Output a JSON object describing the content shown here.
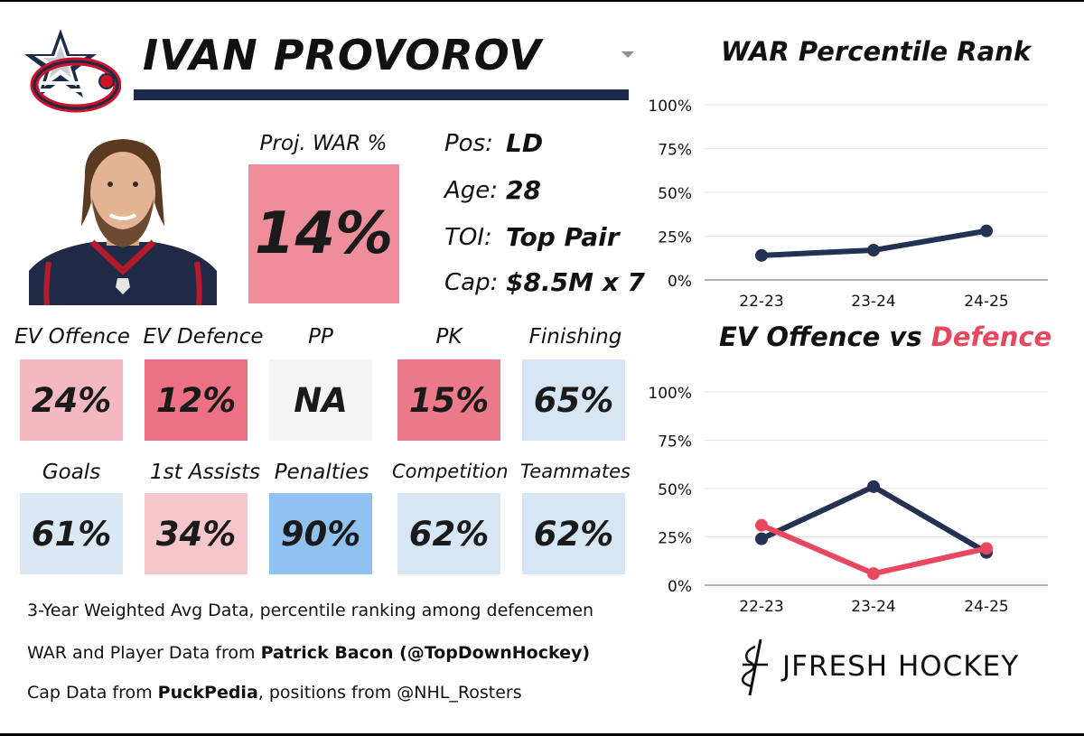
{
  "player": {
    "name": "IVAN PROVOROV",
    "proj_war_label": "Proj. WAR %",
    "proj_war_value": "14%",
    "info": [
      {
        "key": "Pos:",
        "value": "LD"
      },
      {
        "key": "Age:",
        "value": "28"
      },
      {
        "key": "TOI:",
        "value": "Top Pair"
      },
      {
        "key": "Cap:",
        "value": "$8.5M x 7"
      }
    ]
  },
  "colors": {
    "navy": "#233152",
    "red": "#e8485f",
    "pink_strong": "#ec7182",
    "pink_mid": "#ef8e9b",
    "pink_light": "#f3b8c1",
    "neutral": "#f4f4f4",
    "blue_light": "#d7e6f5",
    "blue_strong": "#8fc2f0"
  },
  "tiles_row1": [
    {
      "label": "EV Offence",
      "value": "24%",
      "color": "#f3b8c1"
    },
    {
      "label": "EV Defence",
      "value": "12%",
      "color": "#ec7182"
    },
    {
      "label": "PP",
      "value": "NA",
      "color": "#f4f4f4"
    },
    {
      "label": "PK",
      "value": "15%",
      "color": "#ec7a8a"
    },
    {
      "label": "Finishing",
      "value": "65%",
      "color": "#d7e6f5"
    }
  ],
  "tiles_row2": [
    {
      "label": "Goals",
      "value": "61%",
      "color": "#dbe8f6"
    },
    {
      "label": "1st Assists",
      "value": "34%",
      "color": "#f6c6cd"
    },
    {
      "label": "Penalties",
      "value": "90%",
      "color": "#8fc2f0"
    },
    {
      "label": "Competition",
      "value": "62%",
      "color": "#d7e6f5"
    },
    {
      "label": "Teammates",
      "value": "62%",
      "color": "#d7e6f5"
    }
  ],
  "footer": {
    "line1": "3-Year Weighted Avg Data, percentile ranking among defencemen",
    "line2_prefix": "WAR and Player Data from ",
    "line2_bold": "Patrick Bacon (@TopDownHockey)",
    "line3_prefix": "Cap Data from ",
    "line3_bold": "PuckPedia",
    "line3_suffix": ", positions from @NHL_Rosters"
  },
  "brand": {
    "name": "JFRESH HOCKEY"
  },
  "chart_data": [
    {
      "type": "line",
      "title": "WAR Percentile Rank",
      "categories": [
        "22-23",
        "23-24",
        "24-25"
      ],
      "series": [
        {
          "values": [
            14,
            17,
            28
          ],
          "color": "#233152"
        }
      ],
      "ylim": [
        0,
        100
      ],
      "yticks": [
        "0%",
        "25%",
        "50%",
        "75%",
        "100%"
      ],
      "grid": true
    },
    {
      "type": "line",
      "title_part1": "EV Offence vs ",
      "title_part2": "Defence",
      "categories": [
        "22-23",
        "23-24",
        "24-25"
      ],
      "series": [
        {
          "name": "EV Offence",
          "values": [
            24,
            51,
            17
          ],
          "color": "#233152"
        },
        {
          "name": "Defence",
          "values": [
            31,
            6,
            19
          ],
          "color": "#e8485f"
        }
      ],
      "ylim": [
        0,
        100
      ],
      "yticks": [
        "0%",
        "25%",
        "50%",
        "75%",
        "100%"
      ],
      "grid": true
    }
  ]
}
